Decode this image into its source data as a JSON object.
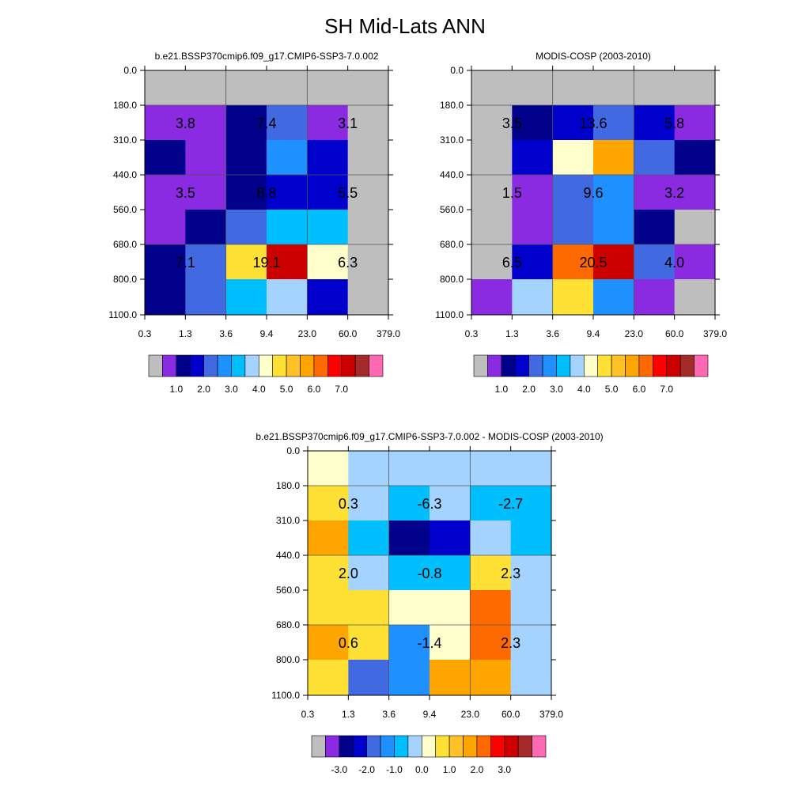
{
  "title": "SH Mid-Lats ANN",
  "chart_data": [
    {
      "type": "heatmap",
      "title": "b.e21.BSSP370cmip6.f09_g17.CMIP6-SSP3-7.0.002",
      "x_ticks": [
        "0.3",
        "1.3",
        "3.6",
        "9.4",
        "23.0",
        "60.0",
        "379.0"
      ],
      "y_ticks": [
        "0.0",
        "180.0",
        "310.0",
        "440.0",
        "560.0",
        "680.0",
        "800.0",
        "1100.0"
      ],
      "cell_colors": [
        [
          "#bebebe",
          "#bebebe",
          "#bebebe",
          "#bebebe",
          "#bebebe",
          "#bebebe"
        ],
        [
          "#8a2be2",
          "#8a2be2",
          "#00008b",
          "#4169e1",
          "#8a2be2",
          "#bebebe"
        ],
        [
          "#00008b",
          "#8a2be2",
          "#00008b",
          "#1e90ff",
          "#0000cd",
          "#bebebe"
        ],
        [
          "#8a2be2",
          "#8a2be2",
          "#00008b",
          "#0000cd",
          "#0000cd",
          "#bebebe"
        ],
        [
          "#8a2be2",
          "#00008b",
          "#4169e1",
          "#00bfff",
          "#00bfff",
          "#bebebe"
        ],
        [
          "#00008b",
          "#4169e1",
          "#ffe135",
          "#cd0000",
          "#ffffcc",
          "#bebebe"
        ],
        [
          "#00008b",
          "#4169e1",
          "#00bfff",
          "#a4d3ff",
          "#0000cd",
          "#bebebe"
        ]
      ],
      "annotations": [
        {
          "text": "3.8",
          "col": 0,
          "row": 0
        },
        {
          "text": "7.4",
          "col": 1,
          "row": 0
        },
        {
          "text": "3.1",
          "col": 2,
          "row": 0
        },
        {
          "text": "3.5",
          "col": 0,
          "row": 1
        },
        {
          "text": "8.8",
          "col": 1,
          "row": 1
        },
        {
          "text": "5.5",
          "col": 2,
          "row": 1
        },
        {
          "text": "7.1",
          "col": 0,
          "row": 2
        },
        {
          "text": "19.1",
          "col": 1,
          "row": 2
        },
        {
          "text": "6.3",
          "col": 2,
          "row": 2
        }
      ],
      "colorbar": {
        "colors": [
          "#bebebe",
          "#8a2be2",
          "#00008b",
          "#0000cd",
          "#4169e1",
          "#1e90ff",
          "#00bfff",
          "#a4d3ff",
          "#ffffcc",
          "#ffe135",
          "#ffc125",
          "#ffa500",
          "#ff6a00",
          "#ff0000",
          "#cd0000",
          "#a52a2a",
          "#ff69b4"
        ],
        "labels": [
          "1.0",
          "2.0",
          "3.0",
          "4.0",
          "5.0",
          "6.0",
          "7.0"
        ]
      }
    },
    {
      "type": "heatmap",
      "title": "MODIS-COSP (2003-2010)",
      "x_ticks": [
        "0.3",
        "1.3",
        "3.6",
        "9.4",
        "23.0",
        "60.0",
        "379.0"
      ],
      "y_ticks": [
        "0.0",
        "180.0",
        "310.0",
        "440.0",
        "560.0",
        "680.0",
        "800.0",
        "1100.0"
      ],
      "cell_colors": [
        [
          "#bebebe",
          "#bebebe",
          "#bebebe",
          "#bebebe",
          "#bebebe",
          "#bebebe"
        ],
        [
          "#bebebe",
          "#00008b",
          "#0000cd",
          "#4169e1",
          "#0000cd",
          "#8a2be2"
        ],
        [
          "#bebebe",
          "#0000cd",
          "#ffffcc",
          "#ffa500",
          "#4169e1",
          "#00008b"
        ],
        [
          "#bebebe",
          "#8a2be2",
          "#4169e1",
          "#1e90ff",
          "#8a2be2",
          "#8a2be2"
        ],
        [
          "#bebebe",
          "#8a2be2",
          "#4169e1",
          "#1e90ff",
          "#00008b",
          "#bebebe"
        ],
        [
          "#bebebe",
          "#0000cd",
          "#ff6a00",
          "#cd0000",
          "#4169e1",
          "#8a2be2"
        ],
        [
          "#8a2be2",
          "#a4d3ff",
          "#ffe135",
          "#1e90ff",
          "#8a2be2",
          "#bebebe"
        ]
      ],
      "annotations": [
        {
          "text": "3.5",
          "col": 0,
          "row": 0
        },
        {
          "text": "13.6",
          "col": 1,
          "row": 0
        },
        {
          "text": "5.8",
          "col": 2,
          "row": 0
        },
        {
          "text": "1.5",
          "col": 0,
          "row": 1
        },
        {
          "text": "9.6",
          "col": 1,
          "row": 1
        },
        {
          "text": "3.2",
          "col": 2,
          "row": 1
        },
        {
          "text": "6.5",
          "col": 0,
          "row": 2
        },
        {
          "text": "20.5",
          "col": 1,
          "row": 2
        },
        {
          "text": "4.0",
          "col": 2,
          "row": 2
        }
      ],
      "colorbar": {
        "colors": [
          "#bebebe",
          "#8a2be2",
          "#00008b",
          "#0000cd",
          "#4169e1",
          "#1e90ff",
          "#00bfff",
          "#a4d3ff",
          "#ffffcc",
          "#ffe135",
          "#ffc125",
          "#ffa500",
          "#ff6a00",
          "#ff0000",
          "#cd0000",
          "#a52a2a",
          "#ff69b4"
        ],
        "labels": [
          "1.0",
          "2.0",
          "3.0",
          "4.0",
          "5.0",
          "6.0",
          "7.0"
        ]
      }
    },
    {
      "type": "heatmap",
      "title": "b.e21.BSSP370cmip6.f09_g17.CMIP6-SSP3-7.0.002 - MODIS-COSP (2003-2010)",
      "x_ticks": [
        "0.3",
        "1.3",
        "3.6",
        "9.4",
        "23.0",
        "60.0",
        "379.0"
      ],
      "y_ticks": [
        "0.0",
        "180.0",
        "310.0",
        "440.0",
        "560.0",
        "680.0",
        "800.0",
        "1100.0"
      ],
      "cell_colors": [
        [
          "#ffffcc",
          "#a4d3ff",
          "#a4d3ff",
          "#a4d3ff",
          "#a4d3ff",
          "#a4d3ff"
        ],
        [
          "#ffe135",
          "#a4d3ff",
          "#00bfff",
          "#a4d3ff",
          "#00bfff",
          "#00bfff"
        ],
        [
          "#ffa500",
          "#00bfff",
          "#00008b",
          "#0000cd",
          "#a4d3ff",
          "#00bfff"
        ],
        [
          "#ffe135",
          "#a4d3ff",
          "#00bfff",
          "#00bfff",
          "#ffe135",
          "#a4d3ff"
        ],
        [
          "#ffe135",
          "#ffe135",
          "#ffffcc",
          "#ffffcc",
          "#ff6a00",
          "#a4d3ff"
        ],
        [
          "#ffa500",
          "#ffe135",
          "#1e90ff",
          "#ffffcc",
          "#ff6a00",
          "#a4d3ff"
        ],
        [
          "#ffe135",
          "#4169e1",
          "#1e90ff",
          "#ffa500",
          "#ffa500",
          "#a4d3ff"
        ]
      ],
      "annotations": [
        {
          "text": "0.3",
          "col": 0,
          "row": 0
        },
        {
          "text": "-6.3",
          "col": 1,
          "row": 0
        },
        {
          "text": "-2.7",
          "col": 2,
          "row": 0
        },
        {
          "text": "2.0",
          "col": 0,
          "row": 1
        },
        {
          "text": "-0.8",
          "col": 1,
          "row": 1
        },
        {
          "text": "2.3",
          "col": 2,
          "row": 1
        },
        {
          "text": "0.6",
          "col": 0,
          "row": 2
        },
        {
          "text": "-1.4",
          "col": 1,
          "row": 2
        },
        {
          "text": "2.3",
          "col": 2,
          "row": 2
        }
      ],
      "colorbar": {
        "colors": [
          "#bebebe",
          "#8a2be2",
          "#00008b",
          "#0000cd",
          "#4169e1",
          "#1e90ff",
          "#00bfff",
          "#a4d3ff",
          "#ffffcc",
          "#ffe135",
          "#ffc125",
          "#ffa500",
          "#ff6a00",
          "#ff0000",
          "#cd0000",
          "#a52a2a",
          "#ff69b4"
        ],
        "labels": [
          "-3.0",
          "-2.0",
          "-1.0",
          "0.0",
          "1.0",
          "2.0",
          "3.0"
        ]
      }
    }
  ]
}
